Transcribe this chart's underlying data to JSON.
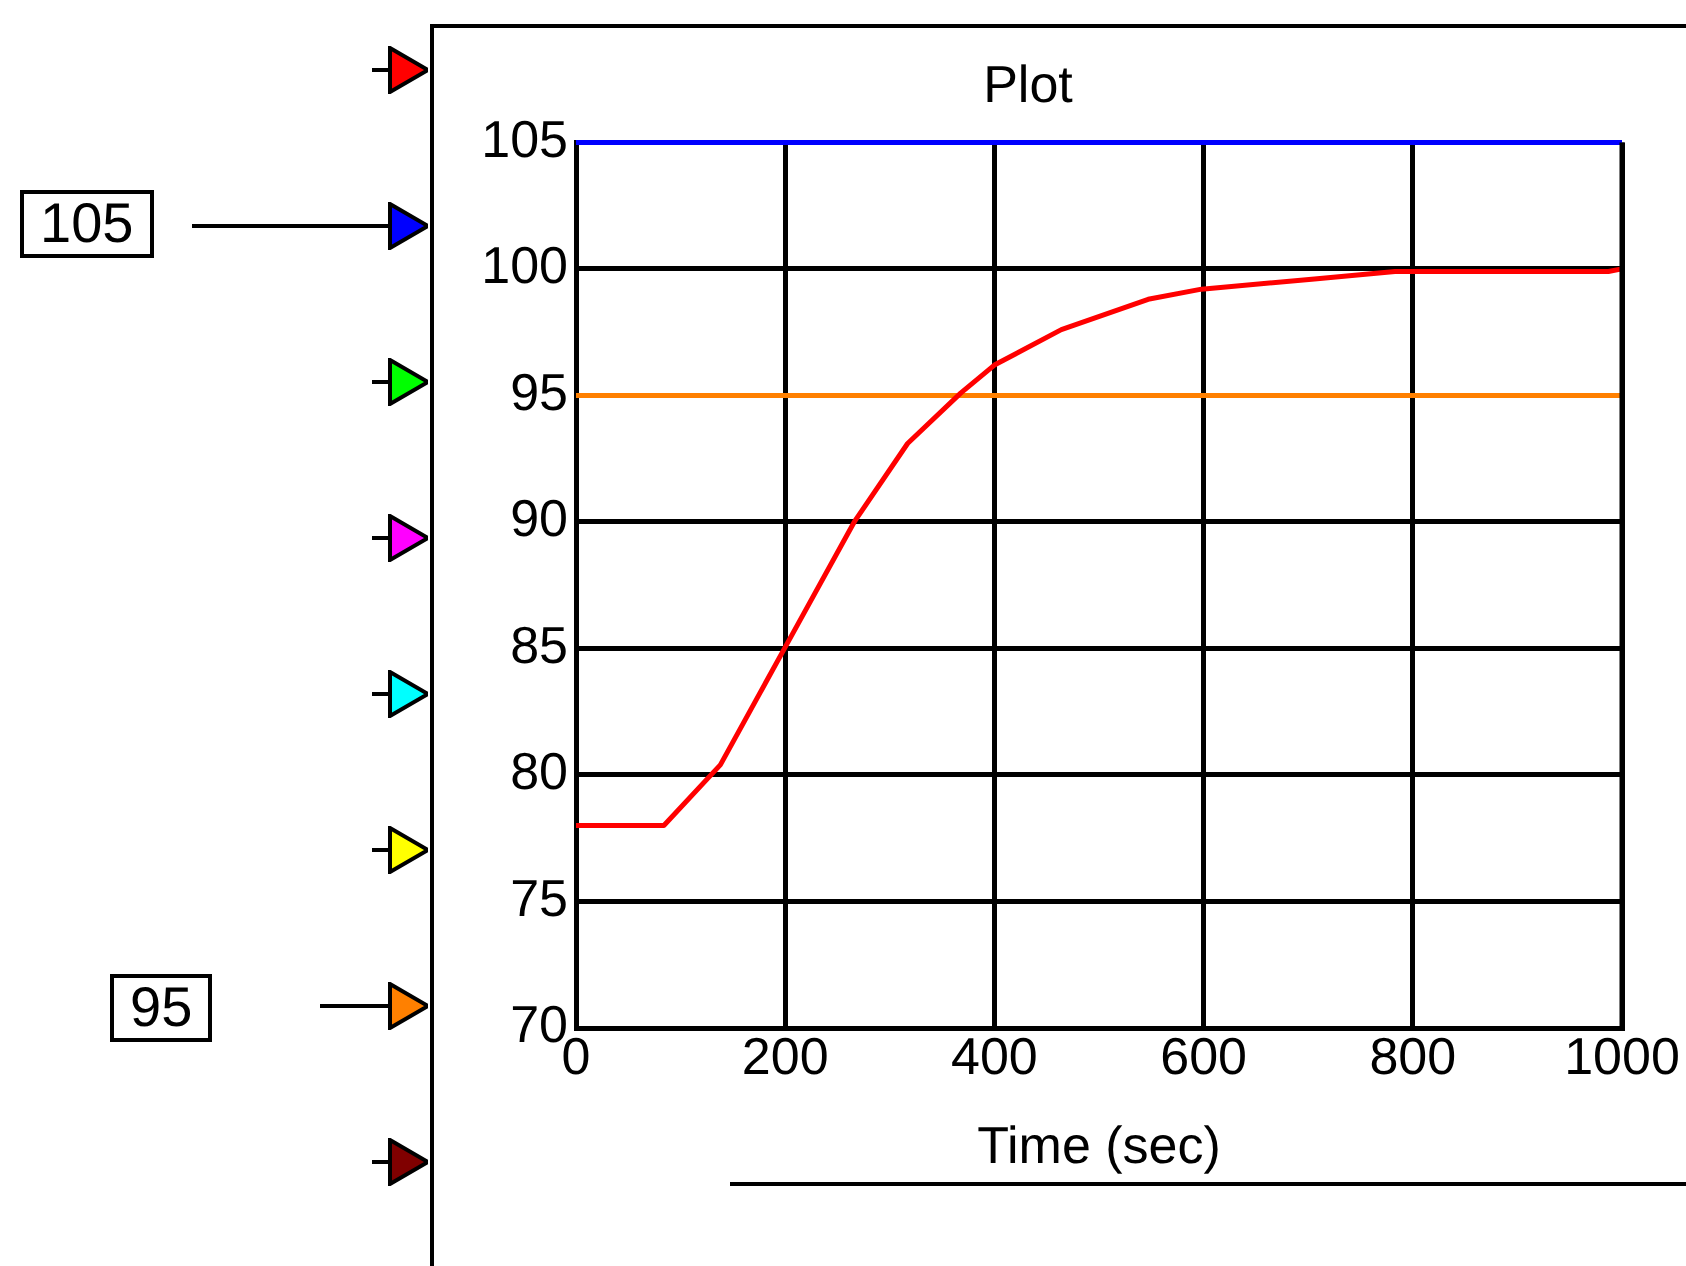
{
  "chart_data": {
    "type": "line",
    "title": "Plot",
    "xlabel": "Time (sec)",
    "xlim": [
      0,
      1000
    ],
    "xticks": [
      0,
      200,
      400,
      600,
      800,
      1000
    ],
    "ylim": [
      70,
      105
    ],
    "yticks": [
      70,
      75,
      80,
      85,
      90,
      95,
      100,
      105
    ],
    "grid": true,
    "legend": false,
    "marker": "none",
    "line_style": "solid",
    "annotations": [
      "105",
      "95"
    ],
    "series": [
      {
        "color": "#ff0000",
        "x": [
          0,
          84,
          138,
          202,
          266,
          317,
          368,
          400,
          464,
          547,
          598,
          706,
          783,
          987,
          1000
        ],
        "values": [
          78,
          78,
          80.4,
          85.2,
          90,
          93.1,
          95.1,
          96.2,
          97.6,
          98.8,
          99.2,
          99.6,
          99.9,
          99.9,
          100
        ]
      },
      {
        "color": "#0000ff",
        "x": [
          0,
          1000
        ],
        "values": [
          105,
          105
        ]
      },
      {
        "color": "#ff8000",
        "x": [
          0,
          1000
        ],
        "values": [
          95,
          95
        ]
      }
    ]
  }
}
